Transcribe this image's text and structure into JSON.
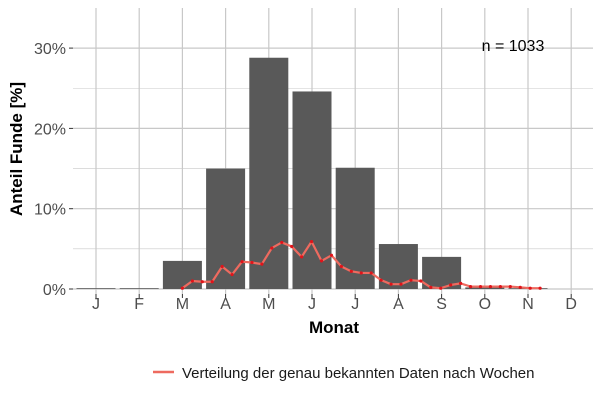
{
  "chart_data": {
    "type": "bar",
    "xlabel": "Monat",
    "ylabel": "Anteil Funde [%]",
    "annotation": "n = 1033",
    "categories": [
      "J",
      "F",
      "M",
      "A",
      "M",
      "J",
      "J",
      "A",
      "S",
      "O",
      "N",
      "D"
    ],
    "values": [
      0.1,
      0.1,
      3.5,
      15.0,
      28.8,
      24.6,
      15.1,
      5.6,
      4.0,
      0.2,
      0.1,
      0.0
    ],
    "ylim": [
      0,
      32
    ],
    "yticks": [
      0,
      10,
      20,
      30
    ],
    "ytick_labels": [
      "0%",
      "10%",
      "20%",
      "30%"
    ],
    "grid": true,
    "colors": {
      "bar": "#595959",
      "line": "#ee6a5f",
      "marker": "#e0141a",
      "grid": "#c8c8c8"
    },
    "series": [
      {
        "name": "Verteilung der genau bekannten Daten nach Wochen",
        "type": "line",
        "x": [
          3.0,
          3.23,
          3.46,
          3.69,
          3.92,
          4.15,
          4.38,
          4.61,
          4.84,
          5.07,
          5.3,
          5.53,
          5.76,
          5.99,
          6.22,
          6.45,
          6.68,
          6.91,
          7.14,
          7.37,
          7.6,
          7.83,
          8.06,
          8.29,
          8.52,
          8.75,
          8.98,
          9.21,
          9.44,
          9.67,
          9.9,
          10.13,
          10.36,
          10.59,
          10.82,
          11.05,
          11.28
        ],
        "values": [
          0.1,
          1.0,
          0.9,
          0.9,
          2.8,
          1.8,
          3.4,
          3.3,
          3.1,
          5.1,
          5.8,
          5.3,
          4.0,
          5.9,
          3.5,
          4.2,
          2.8,
          2.2,
          2.0,
          2.0,
          1.1,
          0.6,
          0.6,
          1.1,
          1.0,
          0.2,
          0.1,
          0.5,
          0.7,
          0.3,
          0.3,
          0.3,
          0.3,
          0.3,
          0.2,
          0.1,
          0.1
        ]
      }
    ],
    "legend": {
      "position": "bottom",
      "label": "Verteilung der genau bekannten Daten nach Wochen"
    }
  }
}
